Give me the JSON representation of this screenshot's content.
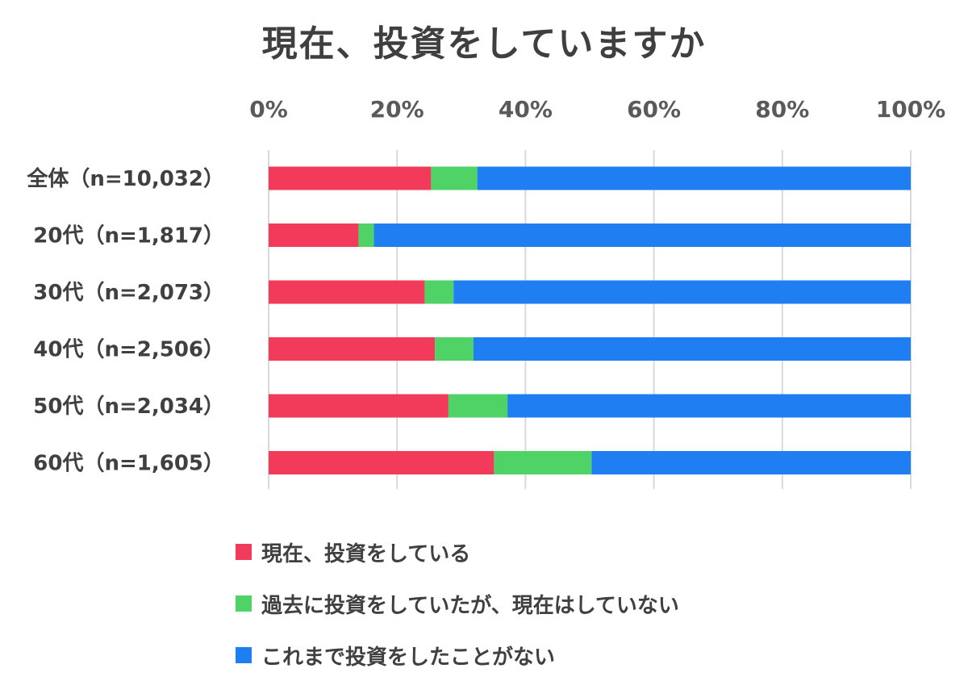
{
  "chart_data": {
    "type": "bar",
    "orientation": "horizontal",
    "stacked": true,
    "title": "現在、投資をしていますか",
    "categories": [
      "全体（n=10,032）",
      "20代（n=1,817）",
      "30代（n=2,073）",
      "40代（n=2,506）",
      "50代（n=2,034）",
      "60代（n=1,605）"
    ],
    "series": [
      {
        "name": "現在、投資をしている",
        "color": "#f23a5a",
        "values": [
          25.3,
          14.0,
          24.3,
          25.9,
          28.0,
          35.1
        ]
      },
      {
        "name": "過去に投資をしていたが、現在はしていない",
        "color": "#4fd366",
        "values": [
          7.2,
          2.4,
          4.5,
          6.0,
          9.2,
          15.2
        ]
      },
      {
        "name": "これまで投資をしたことがない",
        "color": "#1f7ef2",
        "values": [
          67.5,
          83.6,
          71.2,
          68.1,
          62.8,
          49.7
        ]
      }
    ],
    "xlim": [
      0,
      100
    ],
    "xticks": [
      "0%",
      "20%",
      "40%",
      "60%",
      "80%",
      "100%"
    ],
    "grid": true,
    "legend_position": "bottom-left"
  }
}
